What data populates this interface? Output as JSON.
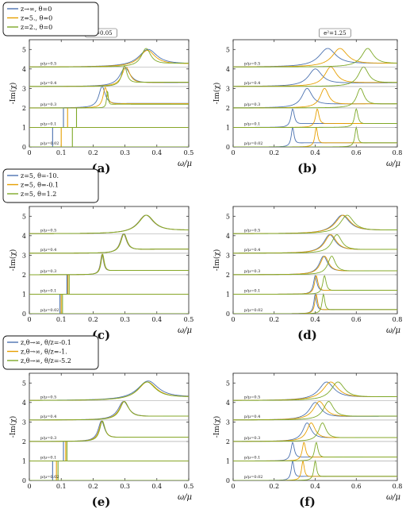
{
  "figure": {
    "x_axis_title": "ω/μ",
    "y_axis_title": "-Im(χ)",
    "colors": {
      "blue": "#4c72b0",
      "orange": "#e69f00",
      "green": "#7ea928"
    }
  },
  "chart_data": [
    {
      "type": "line",
      "panel": "(a)",
      "param_label": "e²=0.05",
      "xlim": [
        0,
        0.5
      ],
      "ylim": [
        0,
        5.5
      ],
      "xticks": [
        "0",
        "0.1",
        "0.2",
        "0.3",
        "0.4",
        "0.5"
      ],
      "yticks": [
        "0",
        "1",
        "2",
        "3",
        "4",
        "5"
      ],
      "legend": [
        "z→∞, θ=0",
        "z=5., θ=0",
        "z=2., θ=0"
      ],
      "rows": [
        {
          "label": "p/μ=0.02",
          "base": 0,
          "peaks": [
            {
              "x": 0.073,
              "h": 1.0,
              "w": 0.0006
            },
            {
              "x": 0.1,
              "h": 1.0,
              "w": 0.0006
            },
            {
              "x": 0.135,
              "h": 1.0,
              "w": 0.0006
            }
          ]
        },
        {
          "label": "p/μ=0.1",
          "base": 1,
          "peaks": [
            {
              "x": 0.107,
              "h": 1.0,
              "w": 0.0008
            },
            {
              "x": 0.12,
              "h": 1.0,
              "w": 0.0008
            },
            {
              "x": 0.148,
              "h": 1.0,
              "w": 0.0008
            }
          ]
        },
        {
          "label": "p/μ=0.3",
          "base": 2,
          "peaks": [
            {
              "x": 0.228,
              "h": 1.1,
              "w": 0.012
            },
            {
              "x": 0.238,
              "h": 1.05,
              "w": 0.008
            },
            {
              "x": 0.245,
              "h": 0.9,
              "w": 0.003
            }
          ]
        },
        {
          "label": "p/μ=0.4",
          "base": 3.1,
          "peaks": [
            {
              "x": 0.3,
              "h": 0.95,
              "w": 0.02
            },
            {
              "x": 0.303,
              "h": 1.0,
              "w": 0.015
            },
            {
              "x": 0.298,
              "h": 1.05,
              "w": 0.01
            }
          ]
        },
        {
          "label": "p/μ=0.5",
          "base": 4.1,
          "peaks": [
            {
              "x": 0.372,
              "h": 0.9,
              "w": 0.035
            },
            {
              "x": 0.37,
              "h": 0.85,
              "w": 0.03
            },
            {
              "x": 0.366,
              "h": 0.95,
              "w": 0.018
            }
          ]
        }
      ]
    },
    {
      "type": "line",
      "panel": "(b)",
      "param_label": "e²=1.25",
      "xlim": [
        0,
        0.8
      ],
      "ylim": [
        0,
        5.5
      ],
      "xticks": [
        "0",
        "0.2",
        "0.4",
        "0.6",
        "0.8"
      ],
      "yticks": [
        "0",
        "1",
        "2",
        "3",
        "4",
        "5"
      ],
      "legend": [],
      "rows": [
        {
          "label": "p/μ=0.02",
          "base": 0,
          "peaks": [
            {
              "x": 0.29,
              "h": 1.0,
              "w": 0.008
            },
            {
              "x": 0.405,
              "h": 1.0,
              "w": 0.008
            },
            {
              "x": 0.6,
              "h": 1.0,
              "w": 0.008
            }
          ]
        },
        {
          "label": "p/μ=0.1",
          "base": 1,
          "peaks": [
            {
              "x": 0.29,
              "h": 0.95,
              "w": 0.01
            },
            {
              "x": 0.41,
              "h": 0.95,
              "w": 0.01
            },
            {
              "x": 0.6,
              "h": 0.95,
              "w": 0.01
            }
          ]
        },
        {
          "label": "p/μ=0.3",
          "base": 2,
          "peaks": [
            {
              "x": 0.36,
              "h": 1.0,
              "w": 0.03
            },
            {
              "x": 0.445,
              "h": 1.0,
              "w": 0.025
            },
            {
              "x": 0.62,
              "h": 1.0,
              "w": 0.022
            }
          ]
        },
        {
          "label": "p/μ=0.4",
          "base": 3.1,
          "peaks": [
            {
              "x": 0.4,
              "h": 0.9,
              "w": 0.04
            },
            {
              "x": 0.475,
              "h": 1.0,
              "w": 0.035
            },
            {
              "x": 0.635,
              "h": 1.0,
              "w": 0.03
            }
          ]
        },
        {
          "label": "p/μ=0.5",
          "base": 4.1,
          "peaks": [
            {
              "x": 0.46,
              "h": 0.95,
              "w": 0.05
            },
            {
              "x": 0.52,
              "h": 0.95,
              "w": 0.045
            },
            {
              "x": 0.655,
              "h": 0.95,
              "w": 0.035
            }
          ]
        }
      ]
    },
    {
      "type": "line",
      "panel": "(c)",
      "param_label": "",
      "xlim": [
        0,
        0.5
      ],
      "ylim": [
        0,
        5.5
      ],
      "xticks": [
        "0",
        "0.1",
        "0.2",
        "0.3",
        "0.4",
        "0.5"
      ],
      "yticks": [
        "0",
        "1",
        "2",
        "3",
        "4",
        "5"
      ],
      "legend": [
        "z=5, θ=-10.",
        "z=5, θ=-0.1",
        "z=5, θ=1.2"
      ],
      "rows": [
        {
          "label": "p/μ=0.02",
          "base": 0,
          "peaks": [
            {
              "x": 0.096,
              "h": 1.0,
              "w": 0.0006
            },
            {
              "x": 0.1,
              "h": 1.0,
              "w": 0.0006
            },
            {
              "x": 0.104,
              "h": 1.0,
              "w": 0.0006
            }
          ]
        },
        {
          "label": "p/μ=0.1",
          "base": 1,
          "peaks": [
            {
              "x": 0.118,
              "h": 1.0,
              "w": 0.0008
            },
            {
              "x": 0.121,
              "h": 1.0,
              "w": 0.0008
            },
            {
              "x": 0.125,
              "h": 1.0,
              "w": 0.0008
            }
          ]
        },
        {
          "label": "p/μ=0.3",
          "base": 2,
          "peaks": [
            {
              "x": 0.228,
              "h": 1.05,
              "w": 0.006
            },
            {
              "x": 0.229,
              "h": 1.05,
              "w": 0.006
            },
            {
              "x": 0.23,
              "h": 1.05,
              "w": 0.006
            }
          ]
        },
        {
          "label": "p/μ=0.4",
          "base": 3.1,
          "peaks": [
            {
              "x": 0.295,
              "h": 1.0,
              "w": 0.012
            },
            {
              "x": 0.296,
              "h": 1.0,
              "w": 0.012
            },
            {
              "x": 0.297,
              "h": 1.0,
              "w": 0.012
            }
          ]
        },
        {
          "label": "p/μ=0.5",
          "base": 4.1,
          "peaks": [
            {
              "x": 0.365,
              "h": 0.95,
              "w": 0.03
            },
            {
              "x": 0.366,
              "h": 0.95,
              "w": 0.03
            },
            {
              "x": 0.367,
              "h": 0.95,
              "w": 0.03
            }
          ]
        }
      ]
    },
    {
      "type": "line",
      "panel": "(d)",
      "param_label": "",
      "xlim": [
        0,
        0.8
      ],
      "ylim": [
        0,
        5.5
      ],
      "xticks": [
        "0",
        "0.2",
        "0.4",
        "0.6",
        "0.8"
      ],
      "yticks": [
        "0",
        "1",
        "2",
        "3",
        "4",
        "5"
      ],
      "legend": [],
      "rows": [
        {
          "label": "p/μ=0.02",
          "base": 0,
          "peaks": [
            {
              "x": 0.4,
              "h": 1.0,
              "w": 0.008
            },
            {
              "x": 0.405,
              "h": 1.0,
              "w": 0.008
            },
            {
              "x": 0.44,
              "h": 1.0,
              "w": 0.008
            }
          ]
        },
        {
          "label": "p/μ=0.1",
          "base": 1,
          "peaks": [
            {
              "x": 0.4,
              "h": 0.95,
              "w": 0.01
            },
            {
              "x": 0.405,
              "h": 0.95,
              "w": 0.01
            },
            {
              "x": 0.445,
              "h": 0.95,
              "w": 0.01
            }
          ]
        },
        {
          "label": "p/μ=0.3",
          "base": 2,
          "peaks": [
            {
              "x": 0.44,
              "h": 0.95,
              "w": 0.025
            },
            {
              "x": 0.445,
              "h": 0.95,
              "w": 0.025
            },
            {
              "x": 0.48,
              "h": 0.95,
              "w": 0.022
            }
          ]
        },
        {
          "label": "p/μ=0.4",
          "base": 3.1,
          "peaks": [
            {
              "x": 0.47,
              "h": 0.95,
              "w": 0.035
            },
            {
              "x": 0.475,
              "h": 0.95,
              "w": 0.035
            },
            {
              "x": 0.505,
              "h": 0.95,
              "w": 0.03
            }
          ]
        },
        {
          "label": "p/μ=0.5",
          "base": 4.1,
          "peaks": [
            {
              "x": 0.53,
              "h": 0.95,
              "w": 0.045
            },
            {
              "x": 0.535,
              "h": 0.95,
              "w": 0.045
            },
            {
              "x": 0.555,
              "h": 0.95,
              "w": 0.04
            }
          ]
        }
      ]
    },
    {
      "type": "line",
      "panel": "(e)",
      "param_label": "",
      "xlim": [
        0,
        0.5
      ],
      "ylim": [
        0,
        5.5
      ],
      "xticks": [
        "0",
        "0.1",
        "0.2",
        "0.3",
        "0.4",
        "0.5"
      ],
      "yticks": [
        "0",
        "1",
        "2",
        "3",
        "4",
        "5"
      ],
      "legend": [
        "z,θ→∞, θ/z=-0.1",
        "z,θ→∞, θ/z=-1.",
        "z,θ→∞, θ/z=-5.2"
      ],
      "rows": [
        {
          "label": "p/μ=0.02",
          "base": 0,
          "peaks": [
            {
              "x": 0.073,
              "h": 1.0,
              "w": 0.0006
            },
            {
              "x": 0.085,
              "h": 1.0,
              "w": 0.0006
            },
            {
              "x": 0.09,
              "h": 1.0,
              "w": 0.0006
            }
          ]
        },
        {
          "label": "p/μ=0.1",
          "base": 1,
          "peaks": [
            {
              "x": 0.107,
              "h": 1.0,
              "w": 0.0008
            },
            {
              "x": 0.114,
              "h": 1.0,
              "w": 0.0008
            },
            {
              "x": 0.118,
              "h": 1.0,
              "w": 0.0008
            }
          ]
        },
        {
          "label": "p/μ=0.3",
          "base": 2,
          "peaks": [
            {
              "x": 0.226,
              "h": 1.05,
              "w": 0.012
            },
            {
              "x": 0.228,
              "h": 1.05,
              "w": 0.011
            },
            {
              "x": 0.229,
              "h": 1.05,
              "w": 0.01
            }
          ]
        },
        {
          "label": "p/μ=0.4",
          "base": 3.1,
          "peaks": [
            {
              "x": 0.295,
              "h": 0.95,
              "w": 0.02
            },
            {
              "x": 0.297,
              "h": 0.95,
              "w": 0.018
            },
            {
              "x": 0.298,
              "h": 0.95,
              "w": 0.017
            }
          ]
        },
        {
          "label": "p/μ=0.5",
          "base": 4.1,
          "peaks": [
            {
              "x": 0.372,
              "h": 1.0,
              "w": 0.04
            },
            {
              "x": 0.37,
              "h": 0.95,
              "w": 0.035
            },
            {
              "x": 0.368,
              "h": 0.95,
              "w": 0.034
            }
          ]
        }
      ]
    },
    {
      "type": "line",
      "panel": "(f)",
      "param_label": "",
      "xlim": [
        0,
        0.8
      ],
      "ylim": [
        0,
        5.5
      ],
      "xticks": [
        "0",
        "0.2",
        "0.4",
        "0.6",
        "0.8"
      ],
      "yticks": [
        "0",
        "1",
        "2",
        "3",
        "4",
        "5"
      ],
      "legend": [],
      "rows": [
        {
          "label": "p/μ=0.02",
          "base": 0,
          "peaks": [
            {
              "x": 0.29,
              "h": 1.0,
              "w": 0.008
            },
            {
              "x": 0.34,
              "h": 1.0,
              "w": 0.008
            },
            {
              "x": 0.4,
              "h": 1.0,
              "w": 0.008
            }
          ]
        },
        {
          "label": "p/μ=0.1",
          "base": 1,
          "peaks": [
            {
              "x": 0.29,
              "h": 0.95,
              "w": 0.01
            },
            {
              "x": 0.345,
              "h": 0.95,
              "w": 0.01
            },
            {
              "x": 0.405,
              "h": 0.95,
              "w": 0.01
            }
          ]
        },
        {
          "label": "p/μ=0.3",
          "base": 2,
          "peaks": [
            {
              "x": 0.36,
              "h": 0.95,
              "w": 0.025
            },
            {
              "x": 0.38,
              "h": 0.95,
              "w": 0.025
            },
            {
              "x": 0.435,
              "h": 0.95,
              "w": 0.022
            }
          ]
        },
        {
          "label": "p/μ=0.4",
          "base": 3.1,
          "peaks": [
            {
              "x": 0.4,
              "h": 0.9,
              "w": 0.035
            },
            {
              "x": 0.42,
              "h": 0.95,
              "w": 0.035
            },
            {
              "x": 0.465,
              "h": 0.95,
              "w": 0.03
            }
          ]
        },
        {
          "label": "p/μ=0.5",
          "base": 4.1,
          "peaks": [
            {
              "x": 0.455,
              "h": 0.95,
              "w": 0.045
            },
            {
              "x": 0.475,
              "h": 0.95,
              "w": 0.045
            },
            {
              "x": 0.51,
              "h": 0.95,
              "w": 0.04
            }
          ]
        }
      ]
    }
  ]
}
